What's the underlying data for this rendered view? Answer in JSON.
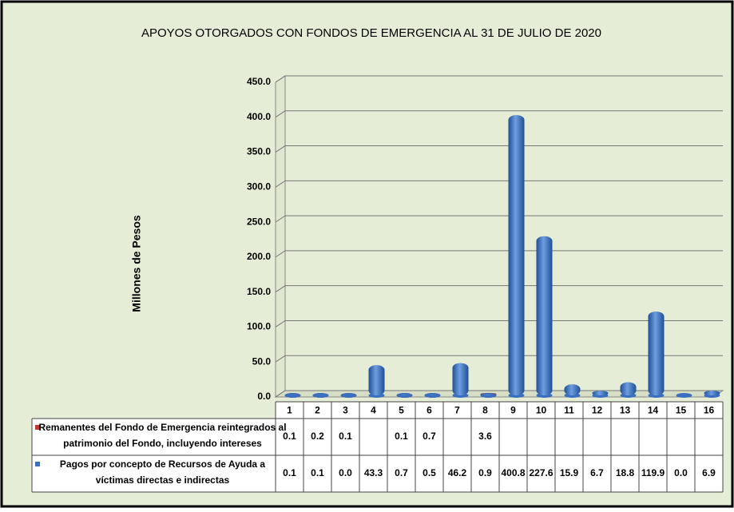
{
  "chart_data": {
    "type": "bar",
    "title": "APOYOS OTORGADOS CON FONDOS DE EMERGENCIA AL 31 DE JULIO DE 2020",
    "y_label": "Millones de Pesos",
    "categories": [
      "1",
      "2",
      "3",
      "4",
      "5",
      "6",
      "7",
      "8",
      "9",
      "10",
      "11",
      "12",
      "13",
      "14",
      "15",
      "16"
    ],
    "series": [
      {
        "name": "Remanentes del Fondo de Emergencia reintegrados al patrimonio del Fondo, incluyendo intereses",
        "color": "#c0392f",
        "values": [
          0.1,
          0.2,
          0.1,
          null,
          0.1,
          0.7,
          null,
          3.6,
          null,
          null,
          null,
          null,
          null,
          null,
          null,
          null
        ],
        "value_labels": [
          "0.1",
          "0.2",
          "0.1",
          null,
          "0.1",
          "0.7",
          null,
          "3.6",
          null,
          null,
          null,
          null,
          null,
          null,
          null,
          null
        ]
      },
      {
        "name": "Pagos por concepto de Recursos de Ayuda a víctimas directas e indirectas",
        "color": "#3a6fc0",
        "values": [
          0.1,
          0.1,
          0,
          43.3,
          0.7,
          0.5,
          46.2,
          0.9,
          400.8,
          227.6,
          15.9,
          6.7,
          18.8,
          119.9,
          0,
          6.9
        ],
        "value_labels": [
          "0.1",
          "0.1",
          "0.0",
          "43.3",
          "0.7",
          "0.5",
          "46.2",
          "0.9",
          "400.8",
          "227.6",
          "15.9",
          "6.7",
          "18.8",
          "119.9",
          "0.0",
          "6.9"
        ]
      }
    ],
    "ylim": [
      0,
      450
    ],
    "yticks": [
      {
        "value": 0,
        "label": "0.0"
      },
      {
        "value": 50,
        "label": "50.0"
      },
      {
        "value": 100,
        "label": "100.0"
      },
      {
        "value": 150,
        "label": "150.0"
      },
      {
        "value": 200,
        "label": "200.0"
      },
      {
        "value": 250,
        "label": "250.0"
      },
      {
        "value": 300,
        "label": "300.0"
      },
      {
        "value": 350,
        "label": "350.0"
      },
      {
        "value": 400,
        "label": "400.0"
      },
      {
        "value": 450,
        "label": "450.0"
      }
    ],
    "grid": true
  }
}
